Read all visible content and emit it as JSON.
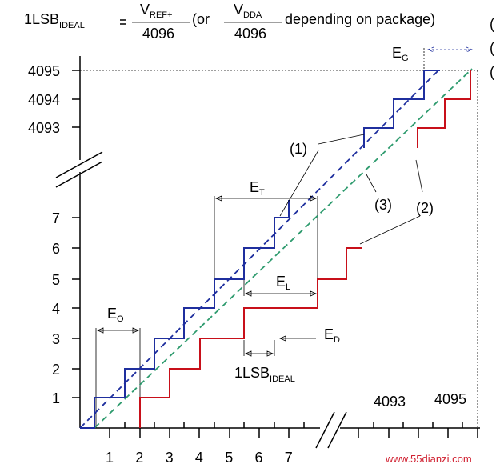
{
  "formula": {
    "lhs": "1LSB",
    "lhs_sub": "IDEAL",
    "num1": "V",
    "num1_sub": "REF+",
    "den1": "4096",
    "or": "(or",
    "num2": "V",
    "num2_sub": "DDA",
    "den2": "4096",
    "tail": "depending on package)"
  },
  "edge_marks": [
    "(",
    "(",
    "("
  ],
  "y_labels": [
    "1",
    "2",
    "3",
    "4",
    "5",
    "6",
    "7",
    "4093",
    "4094",
    "4095"
  ],
  "x_labels": [
    "1",
    "2",
    "3",
    "4",
    "5",
    "6",
    "7"
  ],
  "x_labels_high": [
    "4093",
    "4095"
  ],
  "annotations": {
    "eg": "E",
    "eg_sub": "G",
    "one": "(1)",
    "et": "E",
    "et_sub": "T",
    "three": "(3)",
    "two": "(2)",
    "el": "E",
    "el_sub": "L",
    "eo": "E",
    "eo_sub": "O",
    "ed": "E",
    "ed_sub": "D",
    "lsb": "1LSB",
    "lsb_sub": "IDEAL"
  },
  "watermark": "www.55dianzi.com"
}
